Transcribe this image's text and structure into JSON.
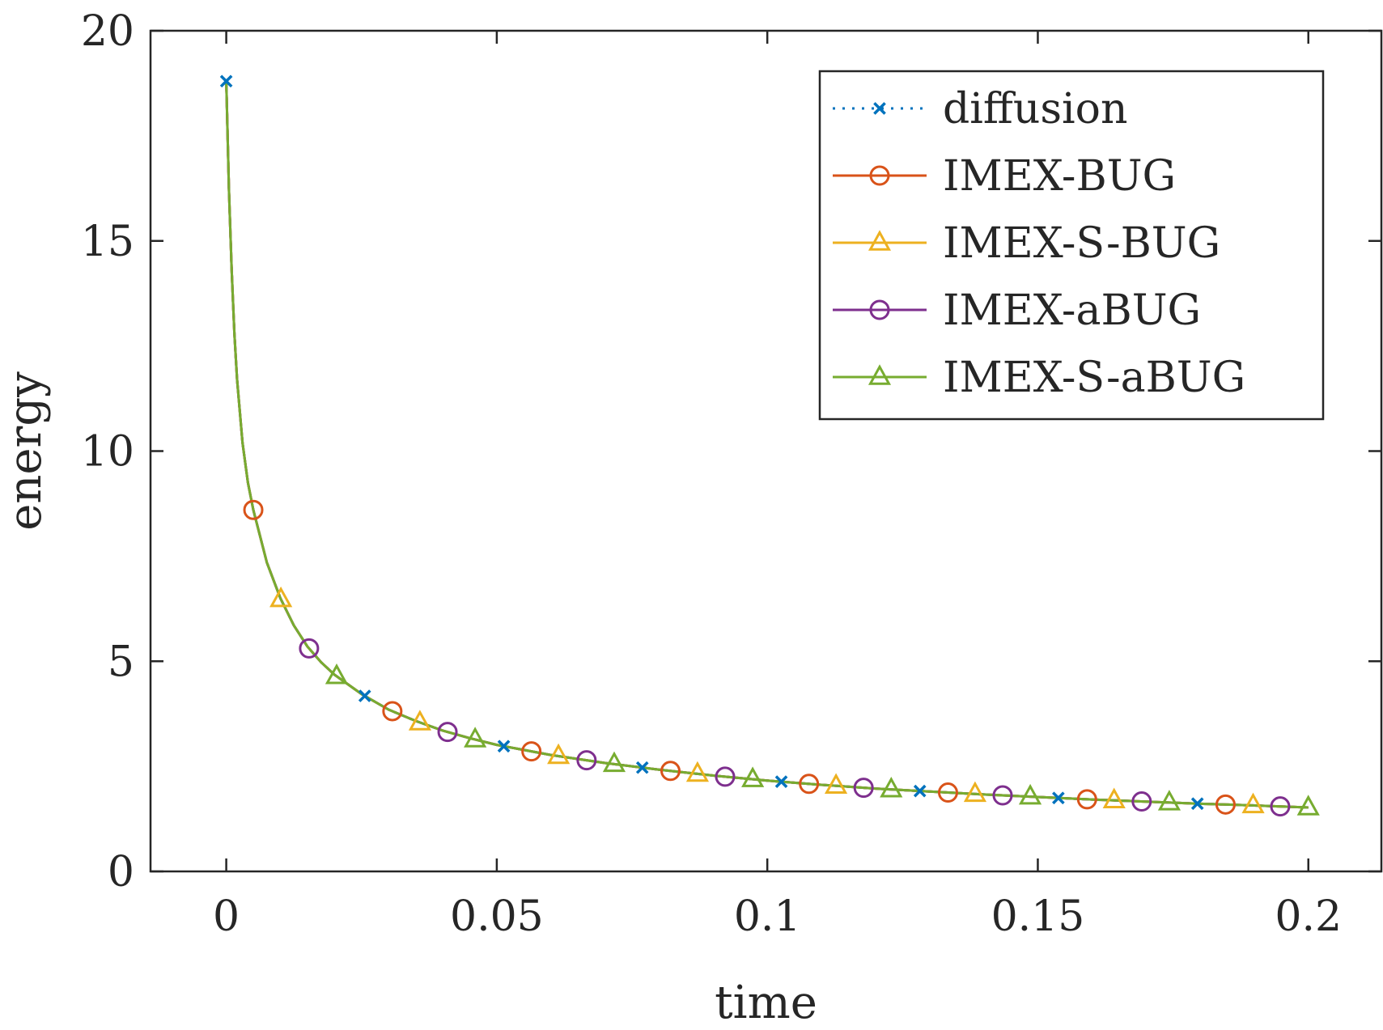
{
  "chart_data": {
    "type": "line",
    "title": "",
    "xlabel": "time",
    "ylabel": "energy",
    "xlim": [
      -0.014,
      0.2135
    ],
    "ylim": [
      0,
      20
    ],
    "xticks": [
      0,
      0.05,
      0.1,
      0.15,
      0.2
    ],
    "xtick_labels": [
      "0",
      "0.05",
      "0.1",
      "0.15",
      "0.2"
    ],
    "yticks": [
      0,
      5,
      10,
      15,
      20
    ],
    "ytick_labels": [
      "0",
      "5",
      "10",
      "15",
      "20"
    ],
    "grid": false,
    "legend_position": "top-right",
    "curve": {
      "description": "all five series overlap on one decaying energy curve",
      "x": [
        0.0,
        0.0005,
        0.001,
        0.0015,
        0.002,
        0.003,
        0.004,
        0.005,
        0.0075,
        0.01,
        0.0125,
        0.015,
        0.0175,
        0.02,
        0.025,
        0.03,
        0.035,
        0.04,
        0.045,
        0.05,
        0.06,
        0.07,
        0.08,
        0.09,
        0.1,
        0.11,
        0.12,
        0.13,
        0.14,
        0.15,
        0.16,
        0.17,
        0.18,
        0.19,
        0.2
      ],
      "y": [
        18.8,
        16.2,
        14.3,
        12.8,
        11.7,
        10.2,
        9.25,
        8.6,
        7.35,
        6.5,
        5.85,
        5.35,
        4.98,
        4.68,
        4.22,
        3.85,
        3.58,
        3.35,
        3.17,
        3.01,
        2.77,
        2.58,
        2.42,
        2.28,
        2.16,
        2.06,
        1.97,
        1.9,
        1.83,
        1.77,
        1.71,
        1.66,
        1.61,
        1.57,
        1.52
      ]
    },
    "series": [
      {
        "name": "diffusion",
        "color": "#0072BD",
        "line_style": "dotted",
        "marker": "x",
        "marker_x": [
          0.0,
          0.0256,
          0.0513,
          0.0769,
          0.1026,
          0.1282,
          0.1538,
          0.1795
        ]
      },
      {
        "name": "IMEX-BUG",
        "color": "#D95319",
        "line_style": "solid",
        "marker": "circle",
        "marker_x": [
          0.005,
          0.0307,
          0.0564,
          0.0821,
          0.1077,
          0.1334,
          0.1591,
          0.1847
        ]
      },
      {
        "name": "IMEX-S-BUG",
        "color": "#EDB120",
        "line_style": "solid",
        "marker": "triangle",
        "marker_x": [
          0.0101,
          0.0358,
          0.0614,
          0.0871,
          0.1127,
          0.1384,
          0.1641,
          0.1898
        ]
      },
      {
        "name": "IMEX-aBUG",
        "color": "#7E2F8E",
        "line_style": "solid",
        "marker": "circle",
        "marker_x": [
          0.0153,
          0.0409,
          0.0666,
          0.0922,
          0.1178,
          0.1435,
          0.1692,
          0.1948
        ]
      },
      {
        "name": "IMEX-S-aBUG",
        "color": "#77AC30",
        "line_style": "solid",
        "marker": "triangle",
        "marker_x": [
          0.0204,
          0.046,
          0.0717,
          0.0973,
          0.1229,
          0.1486,
          0.1743,
          0.2
        ]
      }
    ]
  }
}
